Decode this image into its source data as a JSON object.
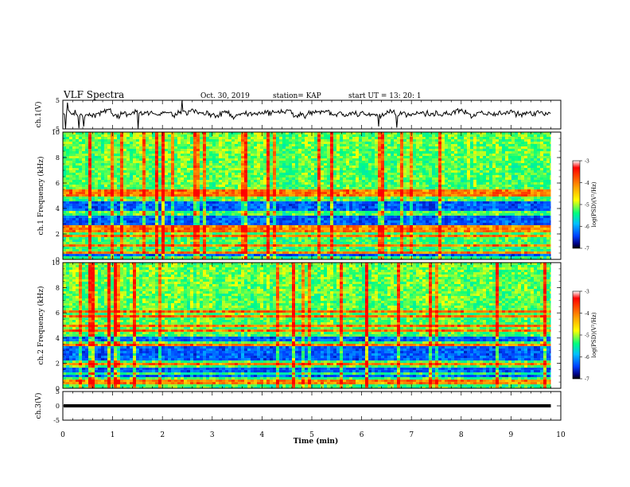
{
  "header": {
    "title": "VLF Spectra",
    "date": "Oct. 30, 2019",
    "station": "station= KAP",
    "start": "start  UT =   13: 20: 1"
  },
  "colorbar": {
    "label": "log(PSD)(V²/Hz)",
    "ticks": [
      "-3",
      "-4",
      "-5",
      "-6",
      "-7"
    ],
    "colors": [
      "#ff0000",
      "#ff8000",
      "#ffff00",
      "#00ff80",
      "#00c0ff",
      "#0040ff",
      "#000080"
    ]
  },
  "chart_data": [
    {
      "type": "line",
      "panel": "ch1-waveform",
      "ylabel": "ch.1(V)",
      "ylim": [
        -5,
        5
      ],
      "yticks": [
        "5",
        "-5"
      ],
      "x_range": [
        0,
        10
      ],
      "data_end_min": 9.8,
      "mean": 0.3,
      "amplitude": 1.5
    },
    {
      "type": "heatmap",
      "panel": "ch1-spectrogram",
      "ylabel": "ch.1 Frequency (kHz)",
      "ylim": [
        0,
        10
      ],
      "yticks": [
        "0",
        "2",
        "4",
        "6",
        "8",
        "10"
      ],
      "x_range": [
        0,
        10
      ],
      "data_end_min": 9.8,
      "zlim": [
        -7,
        -3
      ],
      "bands_khz": [
        0.2,
        0.5,
        1.1,
        1.9,
        2.2,
        2.5,
        5.0,
        5.3
      ],
      "low_bands_khz": [
        [
          2.6,
          3.4
        ],
        [
          0.0,
          0.4
        ],
        [
          3.8,
          4.5
        ]
      ]
    },
    {
      "type": "heatmap",
      "panel": "ch2-spectrogram",
      "ylabel": "ch.2 Frequency (kHz)",
      "ylim": [
        0,
        10
      ],
      "yticks": [
        "0",
        "2",
        "4",
        "6",
        "8",
        "10"
      ],
      "x_range": [
        0,
        10
      ],
      "data_end_min": 9.8,
      "zlim": [
        -7,
        -3
      ],
      "bands_khz": [
        0.5,
        1.2,
        1.9,
        3.5,
        4.6,
        5.0,
        5.7,
        6.1
      ],
      "low_bands_khz": [
        [
          2.2,
          3.3
        ],
        [
          0.8,
          1.6
        ],
        [
          3.7,
          4.1
        ]
      ]
    },
    {
      "type": "line",
      "panel": "ch3-waveform",
      "ylabel": "ch.3(V)",
      "ylim": [
        -5,
        5
      ],
      "yticks": [
        "5",
        "0",
        "-5"
      ],
      "x_range": [
        0,
        10
      ],
      "data_end_min": 9.8,
      "constant_value": 0.0
    }
  ],
  "xaxis": {
    "label": "Time (min)",
    "ticks": [
      "0",
      "1",
      "2",
      "3",
      "4",
      "5",
      "6",
      "7",
      "8",
      "9",
      "10"
    ]
  }
}
